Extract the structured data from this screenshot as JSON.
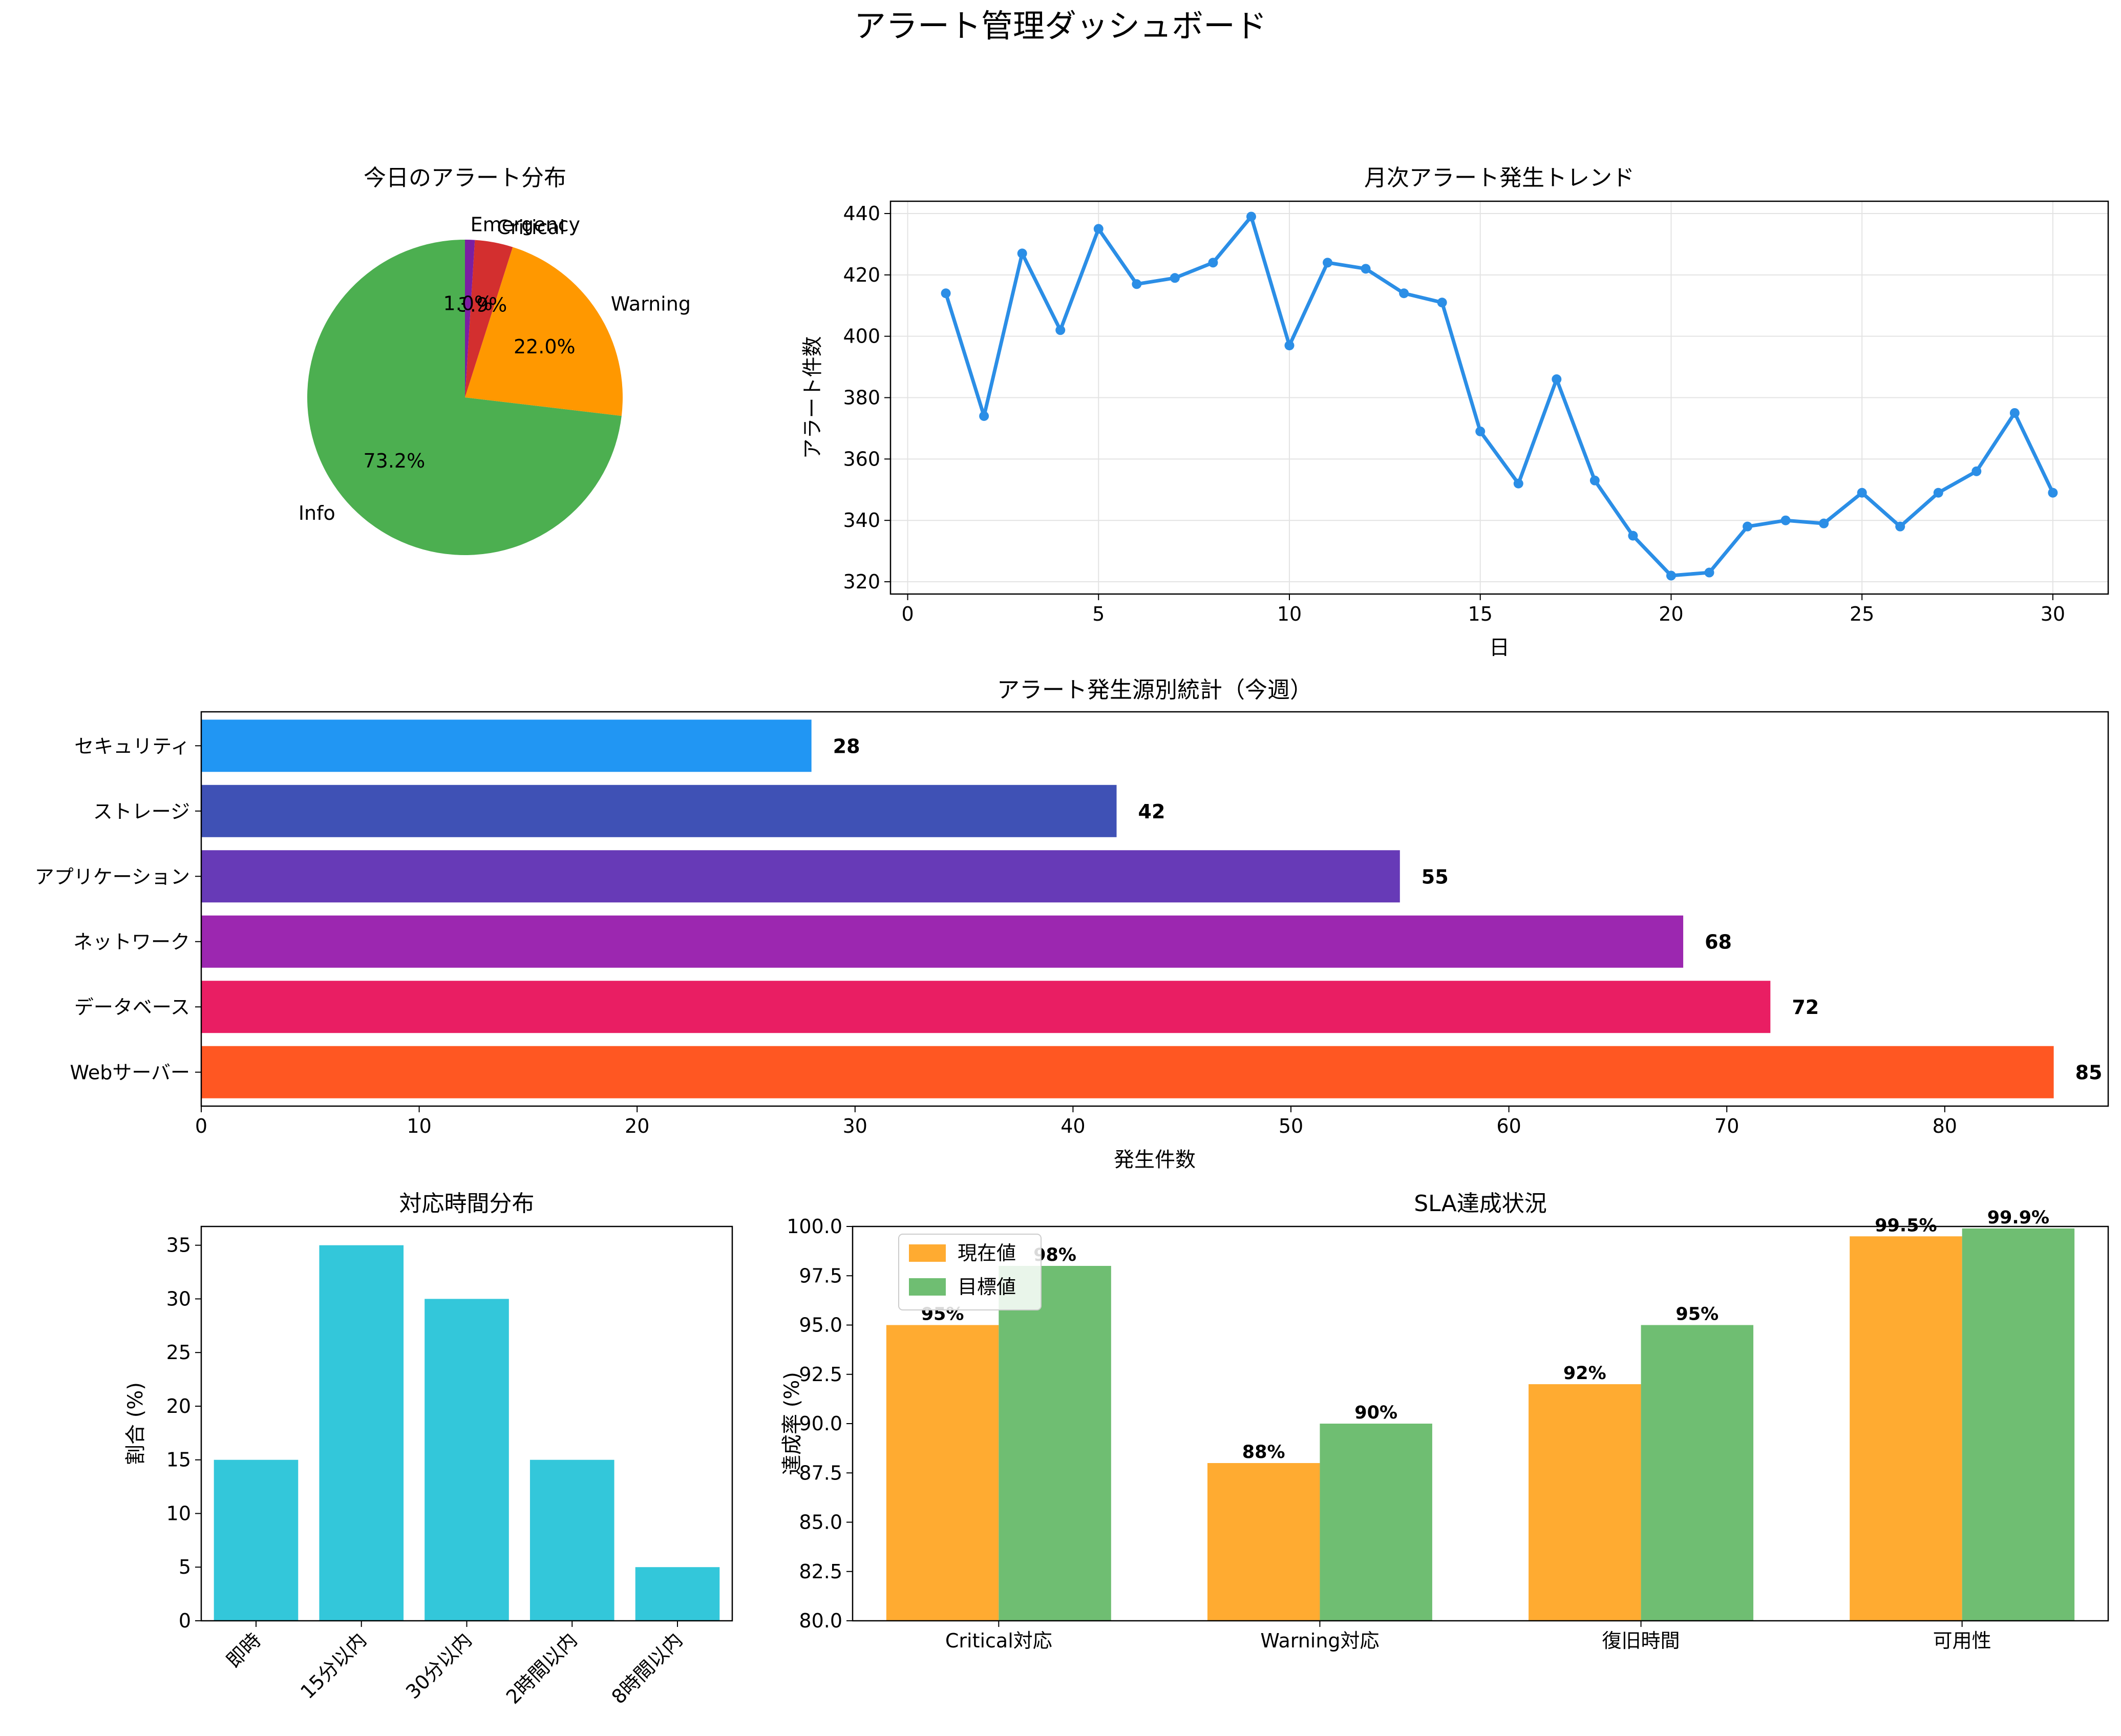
{
  "dashboard": {
    "title": "アラート管理ダッシュボード"
  },
  "chart_data": [
    {
      "id": "pie",
      "type": "pie",
      "title": "今日のアラート分布",
      "labels": [
        "Info",
        "Warning",
        "Critical",
        "Emergency"
      ],
      "values": [
        73.2,
        22.0,
        3.9,
        1.0
      ],
      "pct_labels": [
        "73.2%",
        "22.0%",
        "3.9%",
        "1.0%"
      ],
      "colors": [
        "#4caf50",
        "#ff9800",
        "#d32f2f",
        "#7b1fa2"
      ],
      "start_angle_deg": 90,
      "direction": "counterclockwise"
    },
    {
      "id": "trend",
      "type": "line",
      "title": "月次アラート発生トレンド",
      "xlabel": "日",
      "ylabel": "アラート件数",
      "x": [
        1,
        2,
        3,
        4,
        5,
        6,
        7,
        8,
        9,
        10,
        11,
        12,
        13,
        14,
        15,
        16,
        17,
        18,
        19,
        20,
        21,
        22,
        23,
        24,
        25,
        26,
        27,
        28,
        29,
        30
      ],
      "y": [
        414,
        374,
        427,
        402,
        435,
        417,
        419,
        424,
        439,
        397,
        424,
        422,
        414,
        411,
        369,
        352,
        386,
        353,
        335,
        322,
        323,
        338,
        340,
        339,
        349,
        338,
        349,
        356,
        375,
        349
      ],
      "xlim": [
        -0.45,
        31.45
      ],
      "ylim": [
        316,
        444
      ],
      "xticks": [
        0,
        5,
        10,
        15,
        20,
        25,
        30
      ],
      "yticks": [
        320,
        340,
        360,
        380,
        400,
        420,
        440
      ],
      "grid": true,
      "color": "#2b8ee6"
    },
    {
      "id": "sources",
      "type": "bar",
      "orientation": "horizontal",
      "title": "アラート発生源別統計（今週）",
      "xlabel": "発生件数",
      "categories": [
        "Webサーバー",
        "データベース",
        "ネットワーク",
        "アプリケーション",
        "ストレージ",
        "セキュリティ"
      ],
      "values": [
        85,
        72,
        68,
        55,
        42,
        28
      ],
      "value_labels": [
        "85",
        "72",
        "68",
        "55",
        "42",
        "28"
      ],
      "colors": [
        "#ff5722",
        "#e91e63",
        "#9c27b0",
        "#673ab7",
        "#3f51b5",
        "#2196f3"
      ],
      "xlim": [
        0,
        87.5
      ],
      "xticks": [
        0,
        10,
        20,
        30,
        40,
        50,
        60,
        70,
        80
      ]
    },
    {
      "id": "response",
      "type": "bar",
      "title": "対応時間分布",
      "ylabel": "割合 (%)",
      "categories": [
        "即時",
        "15分以内",
        "30分以内",
        "2時間以内",
        "8時間以内"
      ],
      "values": [
        15,
        35,
        30,
        15,
        5
      ],
      "ylim": [
        0,
        36.75
      ],
      "yticks": [
        0,
        5,
        10,
        15,
        20,
        25,
        30,
        35
      ],
      "color": "#33c7da"
    },
    {
      "id": "sla",
      "type": "bar",
      "title": "SLA達成状況",
      "ylabel": "達成率 (%)",
      "categories": [
        "Critical対応",
        "Warning対応",
        "復旧時間",
        "可用性"
      ],
      "series": [
        {
          "name": "現在値",
          "values": [
            95,
            88,
            92,
            99.5
          ],
          "value_labels": [
            "95%",
            "88%",
            "92%",
            "99.5%"
          ],
          "color": "#ffab31"
        },
        {
          "name": "目標値",
          "values": [
            98,
            90,
            95,
            99.9
          ],
          "value_labels": [
            "98%",
            "90%",
            "95%",
            "99.9%"
          ],
          "color": "#6fbe72"
        }
      ],
      "ylim": [
        80,
        100
      ],
      "yticks": [
        80.0,
        82.5,
        85.0,
        87.5,
        90.0,
        92.5,
        95.0,
        97.5,
        100.0
      ],
      "legend": "top-left"
    }
  ]
}
